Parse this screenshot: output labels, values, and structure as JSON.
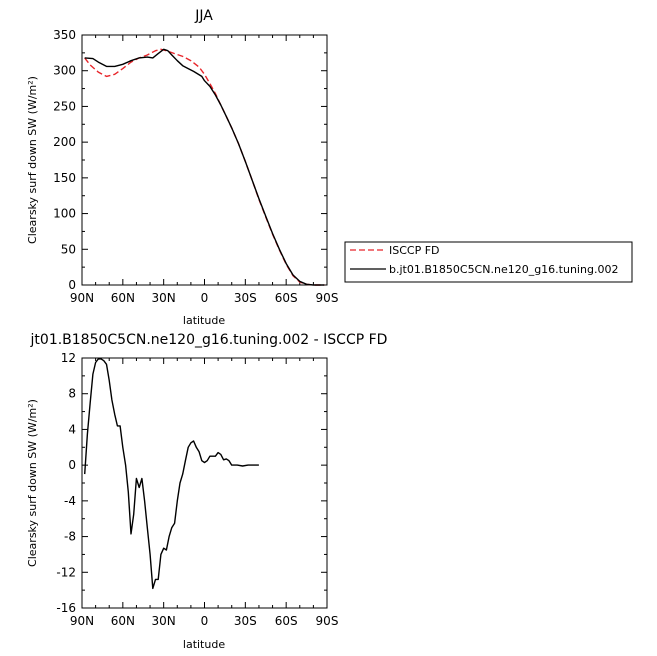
{
  "chart_data": [
    {
      "type": "line",
      "title": "JJA",
      "xlabel": "latitude",
      "ylabel": "Clearsky surf down SW (W/m²)",
      "xticks": [
        "90N",
        "60N",
        "30N",
        "0",
        "30S",
        "60S",
        "90S"
      ],
      "yticks": [
        "0",
        "50",
        "100",
        "150",
        "200",
        "250",
        "300",
        "350"
      ],
      "xlim": [
        90,
        -90
      ],
      "ylim": [
        0,
        350
      ],
      "grid": false,
      "legend": "right",
      "series": [
        {
          "name": "ISCCP FD",
          "color": "#e8252a",
          "dash": "dashed",
          "points": [
            [
              88,
              318
            ],
            [
              84,
              308
            ],
            [
              78,
              298
            ],
            [
              72,
              292
            ],
            [
              66,
              295
            ],
            [
              60,
              303
            ],
            [
              54,
              312
            ],
            [
              48,
              318
            ],
            [
              42,
              322
            ],
            [
              36,
              328
            ],
            [
              32,
              330
            ],
            [
              28,
              328
            ],
            [
              22,
              324
            ],
            [
              16,
              320
            ],
            [
              10,
              314
            ],
            [
              4,
              305
            ],
            [
              0,
              295
            ],
            [
              -4,
              282
            ],
            [
              -8,
              268
            ],
            [
              -12,
              252
            ],
            [
              -16,
              236
            ],
            [
              -20,
              220
            ],
            [
              -25,
              198
            ],
            [
              -30,
              173
            ],
            [
              -35,
              147
            ],
            [
              -40,
              120
            ],
            [
              -45,
              95
            ],
            [
              -50,
              71
            ],
            [
              -55,
              49
            ],
            [
              -60,
              29
            ],
            [
              -65,
              13
            ],
            [
              -70,
              4
            ],
            [
              -75,
              1
            ],
            [
              -80,
              0
            ],
            [
              -88,
              0
            ]
          ]
        },
        {
          "name": "b.jt01.B1850C5CN.ne120_g16.tuning.002",
          "color": "#000000",
          "dash": "solid",
          "points": [
            [
              88,
              318
            ],
            [
              82,
              317
            ],
            [
              78,
              312
            ],
            [
              72,
              306
            ],
            [
              66,
              306
            ],
            [
              60,
              309
            ],
            [
              54,
              314
            ],
            [
              48,
              318
            ],
            [
              42,
              319
            ],
            [
              38,
              318
            ],
            [
              34,
              324
            ],
            [
              30,
              330
            ],
            [
              27,
              328
            ],
            [
              24,
              322
            ],
            [
              20,
              314
            ],
            [
              16,
              307
            ],
            [
              12,
              303
            ],
            [
              8,
              299
            ],
            [
              2,
              292
            ],
            [
              0,
              286
            ],
            [
              -4,
              278
            ],
            [
              -8,
              266
            ],
            [
              -12,
              252
            ],
            [
              -16,
              236
            ],
            [
              -20,
              220
            ],
            [
              -25,
              198
            ],
            [
              -30,
              173
            ],
            [
              -35,
              147
            ],
            [
              -40,
              121
            ],
            [
              -45,
              96
            ],
            [
              -50,
              72
            ],
            [
              -55,
              50
            ],
            [
              -60,
              30
            ],
            [
              -65,
              14
            ],
            [
              -70,
              5
            ],
            [
              -75,
              1
            ],
            [
              -80,
              0
            ],
            [
              -88,
              0
            ]
          ]
        }
      ]
    },
    {
      "type": "line",
      "title": "jt01.B1850C5CN.ne120_g16.tuning.002 - ISCCP FD",
      "xlabel": "latitude",
      "ylabel": "Clearsky surf down SW (W/m²)",
      "xticks": [
        "90N",
        "60N",
        "30N",
        "0",
        "30S",
        "60S",
        "90S"
      ],
      "yticks": [
        "-16",
        "-12",
        "-8",
        "-4",
        "0",
        "4",
        "8",
        "12"
      ],
      "xlim": [
        90,
        -90
      ],
      "ylim": [
        -16,
        12
      ],
      "grid": false,
      "series": [
        {
          "color": "#000000",
          "dash": "solid",
          "points": [
            [
              88,
              -1
            ],
            [
              86,
              3.5
            ],
            [
              84,
              7
            ],
            [
              82,
              10.2
            ],
            [
              80,
              11.5
            ],
            [
              78,
              11.9
            ],
            [
              76,
              11.9
            ],
            [
              74,
              11.7
            ],
            [
              72,
              11.3
            ],
            [
              70,
              9.5
            ],
            [
              68,
              7.3
            ],
            [
              66,
              5.7
            ],
            [
              64,
              4.4
            ],
            [
              62,
              4.4
            ],
            [
              60,
              2
            ],
            [
              58,
              0
            ],
            [
              56,
              -3
            ],
            [
              54,
              -7.7
            ],
            [
              52,
              -5.5
            ],
            [
              50,
              -1.5
            ],
            [
              48,
              -2.5
            ],
            [
              46,
              -1.5
            ],
            [
              44,
              -4
            ],
            [
              42,
              -7
            ],
            [
              40,
              -10
            ],
            [
              38,
              -13.8
            ],
            [
              36,
              -12.8
            ],
            [
              34,
              -12.8
            ],
            [
              32,
              -10
            ],
            [
              30,
              -9.3
            ],
            [
              28,
              -9.5
            ],
            [
              26,
              -8
            ],
            [
              24,
              -7
            ],
            [
              22,
              -6.5
            ],
            [
              20,
              -4
            ],
            [
              18,
              -2
            ],
            [
              16,
              -1
            ],
            [
              14,
              0.5
            ],
            [
              12,
              2
            ],
            [
              10,
              2.5
            ],
            [
              8,
              2.7
            ],
            [
              6,
              2
            ],
            [
              4,
              1.5
            ],
            [
              2,
              0.5
            ],
            [
              0,
              0.3
            ],
            [
              -2,
              0.5
            ],
            [
              -4,
              1
            ],
            [
              -6,
              1
            ],
            [
              -8,
              1
            ],
            [
              -10,
              1.4
            ],
            [
              -12,
              1.2
            ],
            [
              -14,
              0.6
            ],
            [
              -16,
              0.7
            ],
            [
              -18,
              0.5
            ],
            [
              -20,
              0
            ],
            [
              -24,
              0
            ],
            [
              -28,
              -0.1
            ],
            [
              -32,
              0
            ],
            [
              -36,
              0
            ],
            [
              -40,
              0
            ]
          ]
        }
      ]
    }
  ]
}
